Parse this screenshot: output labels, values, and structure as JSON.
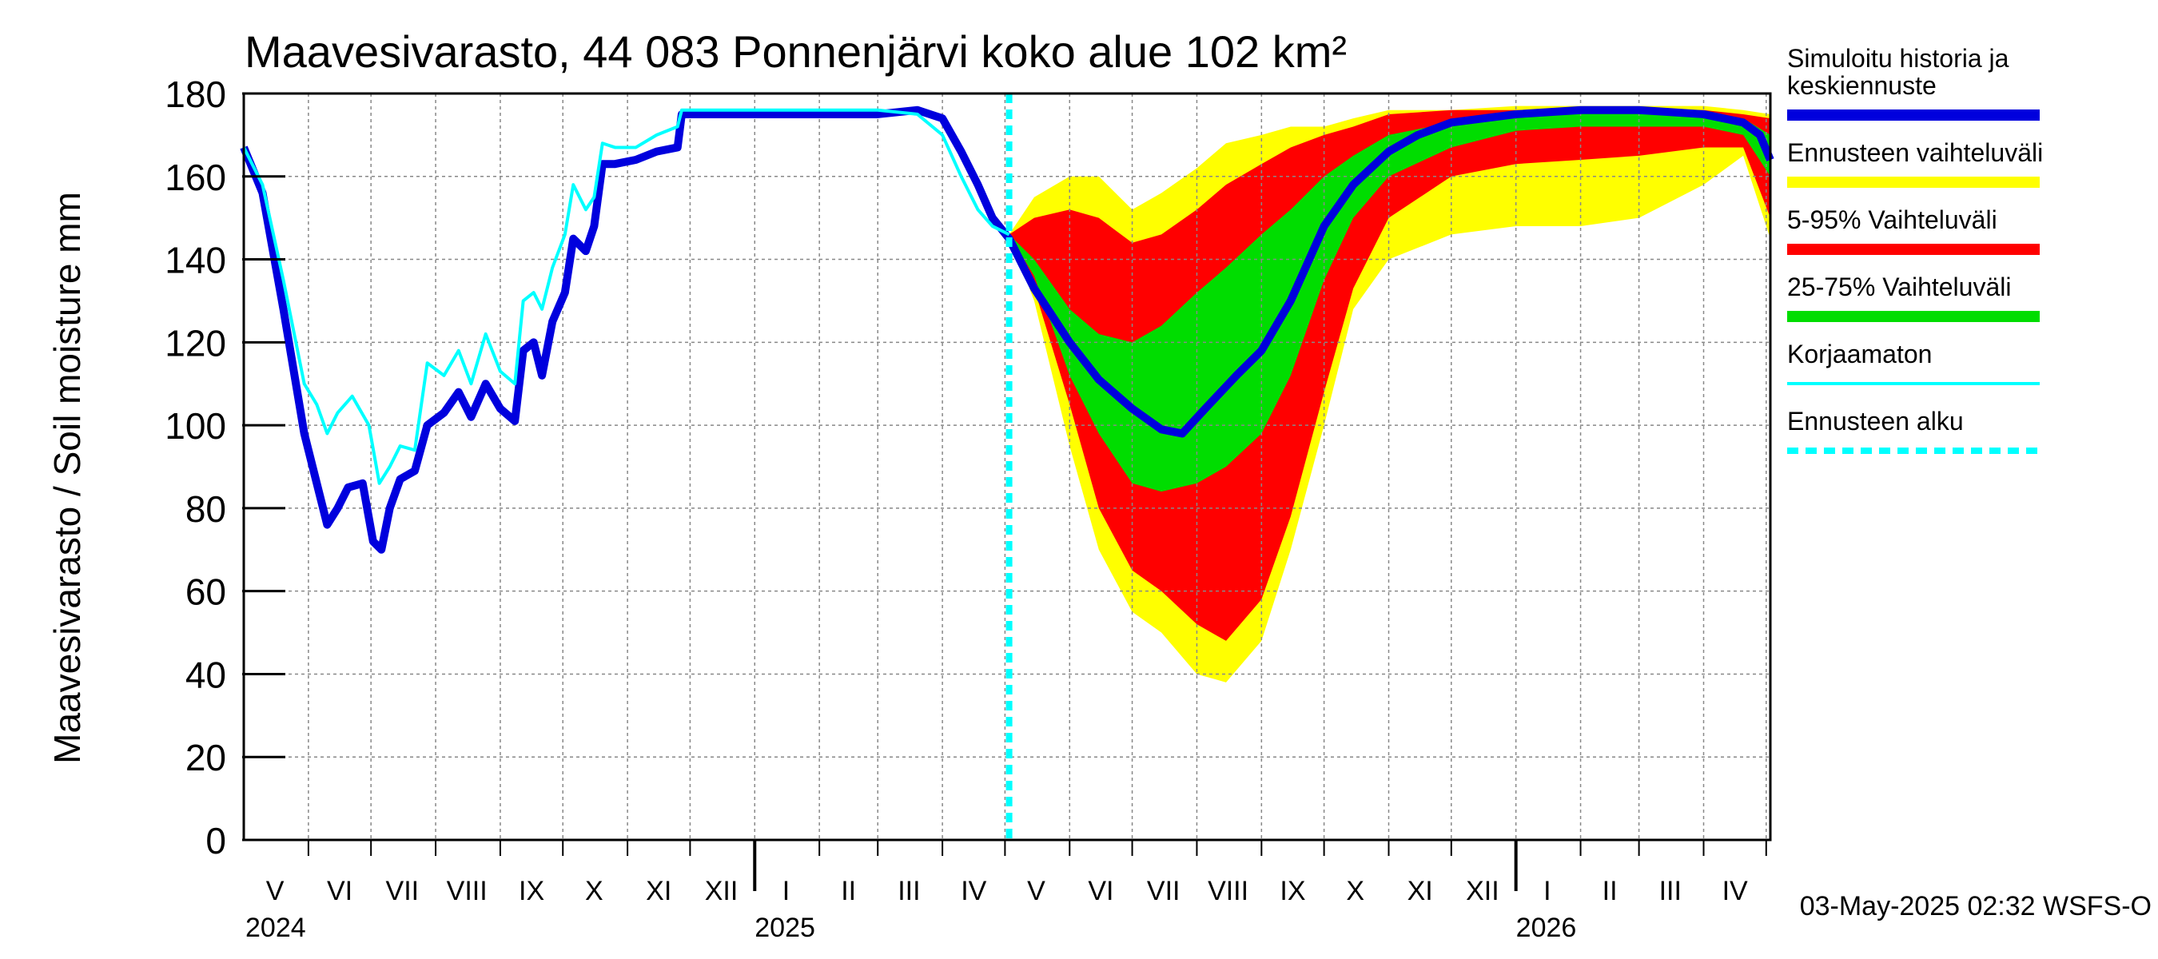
{
  "chart_data": {
    "type": "area",
    "title": "Maavesivarasto, 44 083 Ponnenjärvi koko alue 102 km²",
    "ylabel": "Maavesivarasto / Soil moisture   mm",
    "ylim": [
      0,
      180
    ],
    "yticks": [
      0,
      20,
      40,
      60,
      80,
      100,
      120,
      140,
      160,
      180
    ],
    "grid": true,
    "legend_position": "right",
    "x_range": [
      "2024-05-01",
      "2026-05-03"
    ],
    "forecast_start": "2025-05-03",
    "month_labels": [
      {
        "label": "V",
        "date": "2024-05-16"
      },
      {
        "label": "VI",
        "date": "2024-06-16"
      },
      {
        "label": "VII",
        "date": "2024-07-16"
      },
      {
        "label": "VIII",
        "date": "2024-08-16"
      },
      {
        "label": "IX",
        "date": "2024-09-16"
      },
      {
        "label": "X",
        "date": "2024-10-16"
      },
      {
        "label": "XI",
        "date": "2024-11-16"
      },
      {
        "label": "XII",
        "date": "2024-12-16"
      },
      {
        "label": "I",
        "date": "2025-01-16"
      },
      {
        "label": "II",
        "date": "2025-02-15"
      },
      {
        "label": "III",
        "date": "2025-03-16"
      },
      {
        "label": "IV",
        "date": "2025-04-16"
      },
      {
        "label": "V",
        "date": "2025-05-16"
      },
      {
        "label": "VI",
        "date": "2025-06-16"
      },
      {
        "label": "VII",
        "date": "2025-07-16"
      },
      {
        "label": "VIII",
        "date": "2025-08-16"
      },
      {
        "label": "IX",
        "date": "2025-09-16"
      },
      {
        "label": "X",
        "date": "2025-10-16"
      },
      {
        "label": "XI",
        "date": "2025-11-16"
      },
      {
        "label": "XII",
        "date": "2025-12-16"
      },
      {
        "label": "I",
        "date": "2026-01-16"
      },
      {
        "label": "II",
        "date": "2026-02-15"
      },
      {
        "label": "III",
        "date": "2026-03-16"
      },
      {
        "label": "IV",
        "date": "2026-04-16"
      }
    ],
    "year_labels": [
      {
        "label": "2024",
        "date": "2024-05-01"
      },
      {
        "label": "2025",
        "date": "2025-01-01"
      },
      {
        "label": "2026",
        "date": "2026-01-01"
      }
    ],
    "legend": [
      {
        "label": "Simuloitu historia ja keskiennuste",
        "color": "#0000dd",
        "style": "thick"
      },
      {
        "label": "Ennusteen vaihteluväli",
        "color": "#ffff00",
        "style": "thick"
      },
      {
        "label": "5-95% Vaihteluväli",
        "color": "#ff0000",
        "style": "thick"
      },
      {
        "label": "25-75% Vaihteluväli",
        "color": "#00dd00",
        "style": "thick"
      },
      {
        "label": "Korjaamaton",
        "color": "#00ffff",
        "style": "thin"
      },
      {
        "label": "Ennusteen alku",
        "color": "#00ffff",
        "style": "dashed"
      }
    ],
    "series": [
      {
        "name": "Simuloitu historia ja keskiennuste",
        "color": "#0000dd",
        "points": [
          [
            "2024-05-01",
            167
          ],
          [
            "2024-05-10",
            156
          ],
          [
            "2024-05-20",
            128
          ],
          [
            "2024-05-30",
            98
          ],
          [
            "2024-06-05",
            86
          ],
          [
            "2024-06-10",
            76
          ],
          [
            "2024-06-15",
            80
          ],
          [
            "2024-06-20",
            85
          ],
          [
            "2024-06-27",
            86
          ],
          [
            "2024-07-02",
            72
          ],
          [
            "2024-07-06",
            70
          ],
          [
            "2024-07-10",
            80
          ],
          [
            "2024-07-15",
            87
          ],
          [
            "2024-07-22",
            89
          ],
          [
            "2024-07-28",
            100
          ],
          [
            "2024-08-05",
            103
          ],
          [
            "2024-08-12",
            108
          ],
          [
            "2024-08-18",
            102
          ],
          [
            "2024-08-25",
            110
          ],
          [
            "2024-09-01",
            104
          ],
          [
            "2024-09-08",
            101
          ],
          [
            "2024-09-12",
            118
          ],
          [
            "2024-09-17",
            120
          ],
          [
            "2024-09-21",
            112
          ],
          [
            "2024-09-26",
            125
          ],
          [
            "2024-10-02",
            132
          ],
          [
            "2024-10-06",
            145
          ],
          [
            "2024-10-12",
            142
          ],
          [
            "2024-10-16",
            148
          ],
          [
            "2024-10-20",
            163
          ],
          [
            "2024-10-26",
            163
          ],
          [
            "2024-11-05",
            164
          ],
          [
            "2024-11-15",
            166
          ],
          [
            "2024-11-25",
            167
          ],
          [
            "2024-11-27",
            175
          ],
          [
            "2025-01-15",
            175
          ],
          [
            "2025-03-01",
            175
          ],
          [
            "2025-03-20",
            176
          ],
          [
            "2025-04-01",
            174
          ],
          [
            "2025-04-10",
            166
          ],
          [
            "2025-04-18",
            158
          ],
          [
            "2025-04-25",
            150
          ],
          [
            "2025-05-03",
            145
          ],
          [
            "2025-05-15",
            133
          ],
          [
            "2025-06-01",
            120
          ],
          [
            "2025-06-15",
            111
          ],
          [
            "2025-07-01",
            104
          ],
          [
            "2025-07-15",
            99
          ],
          [
            "2025-07-25",
            98
          ],
          [
            "2025-08-05",
            104
          ],
          [
            "2025-08-20",
            112
          ],
          [
            "2025-09-01",
            118
          ],
          [
            "2025-09-15",
            130
          ],
          [
            "2025-10-01",
            148
          ],
          [
            "2025-10-15",
            158
          ],
          [
            "2025-11-01",
            166
          ],
          [
            "2025-11-15",
            170
          ],
          [
            "2025-12-01",
            173
          ],
          [
            "2026-01-01",
            175
          ],
          [
            "2026-02-01",
            176
          ],
          [
            "2026-03-01",
            176
          ],
          [
            "2026-04-01",
            175
          ],
          [
            "2026-04-20",
            173
          ],
          [
            "2026-04-28",
            170
          ],
          [
            "2026-05-03",
            164
          ]
        ]
      },
      {
        "name": "Korjaamaton",
        "color": "#00ffff",
        "points": [
          [
            "2024-05-01",
            167
          ],
          [
            "2024-05-10",
            158
          ],
          [
            "2024-05-20",
            135
          ],
          [
            "2024-05-30",
            110
          ],
          [
            "2024-06-05",
            105
          ],
          [
            "2024-06-10",
            98
          ],
          [
            "2024-06-15",
            103
          ],
          [
            "2024-06-22",
            107
          ],
          [
            "2024-06-30",
            100
          ],
          [
            "2024-07-05",
            86
          ],
          [
            "2024-07-10",
            90
          ],
          [
            "2024-07-15",
            95
          ],
          [
            "2024-07-22",
            94
          ],
          [
            "2024-07-28",
            115
          ],
          [
            "2024-08-05",
            112
          ],
          [
            "2024-08-12",
            118
          ],
          [
            "2024-08-18",
            110
          ],
          [
            "2024-08-25",
            122
          ],
          [
            "2024-09-01",
            113
          ],
          [
            "2024-09-08",
            110
          ],
          [
            "2024-09-12",
            130
          ],
          [
            "2024-09-17",
            132
          ],
          [
            "2024-09-21",
            128
          ],
          [
            "2024-09-26",
            138
          ],
          [
            "2024-10-02",
            146
          ],
          [
            "2024-10-06",
            158
          ],
          [
            "2024-10-12",
            152
          ],
          [
            "2024-10-16",
            155
          ],
          [
            "2024-10-20",
            168
          ],
          [
            "2024-10-26",
            167
          ],
          [
            "2024-11-05",
            167
          ],
          [
            "2024-11-15",
            170
          ],
          [
            "2024-11-25",
            172
          ],
          [
            "2024-11-27",
            176
          ],
          [
            "2025-01-15",
            176
          ],
          [
            "2025-03-01",
            176
          ],
          [
            "2025-03-20",
            175
          ],
          [
            "2025-04-01",
            170
          ],
          [
            "2025-04-10",
            160
          ],
          [
            "2025-04-18",
            152
          ],
          [
            "2025-04-25",
            148
          ],
          [
            "2025-05-03",
            146
          ]
        ]
      }
    ],
    "bands": [
      {
        "name": "Ennusteen vaihteluväli",
        "color": "#ffff00",
        "points": [
          [
            "2025-05-03",
            146,
            146
          ],
          [
            "2025-05-15",
            155,
            130
          ],
          [
            "2025-06-01",
            160,
            95
          ],
          [
            "2025-06-15",
            160,
            70
          ],
          [
            "2025-07-01",
            152,
            55
          ],
          [
            "2025-07-15",
            156,
            50
          ],
          [
            "2025-08-01",
            162,
            40
          ],
          [
            "2025-08-15",
            168,
            38
          ],
          [
            "2025-09-01",
            170,
            48
          ],
          [
            "2025-09-15",
            172,
            70
          ],
          [
            "2025-10-01",
            172,
            100
          ],
          [
            "2025-10-15",
            174,
            128
          ],
          [
            "2025-11-01",
            176,
            140
          ],
          [
            "2025-12-01",
            176,
            146
          ],
          [
            "2026-01-01",
            177,
            148
          ],
          [
            "2026-02-01",
            177,
            148
          ],
          [
            "2026-03-01",
            177,
            150
          ],
          [
            "2026-04-01",
            177,
            158
          ],
          [
            "2026-04-20",
            176,
            165
          ],
          [
            "2026-05-03",
            175,
            145
          ]
        ]
      },
      {
        "name": "5-95% Vaihteluväli",
        "color": "#ff0000",
        "points": [
          [
            "2025-05-03",
            146,
            146
          ],
          [
            "2025-05-15",
            150,
            133
          ],
          [
            "2025-06-01",
            152,
            105
          ],
          [
            "2025-06-15",
            150,
            80
          ],
          [
            "2025-07-01",
            144,
            65
          ],
          [
            "2025-07-15",
            146,
            60
          ],
          [
            "2025-08-01",
            152,
            52
          ],
          [
            "2025-08-15",
            158,
            48
          ],
          [
            "2025-09-01",
            163,
            58
          ],
          [
            "2025-09-15",
            167,
            78
          ],
          [
            "2025-10-01",
            170,
            108
          ],
          [
            "2025-10-15",
            172,
            133
          ],
          [
            "2025-11-01",
            175,
            150
          ],
          [
            "2025-12-01",
            176,
            160
          ],
          [
            "2026-01-01",
            176,
            163
          ],
          [
            "2026-02-01",
            176,
            164
          ],
          [
            "2026-03-01",
            176,
            165
          ],
          [
            "2026-04-01",
            176,
            167
          ],
          [
            "2026-04-20",
            175,
            167
          ],
          [
            "2026-05-03",
            174,
            150
          ]
        ]
      },
      {
        "name": "25-75% Vaihteluväli",
        "color": "#00dd00",
        "points": [
          [
            "2025-05-03",
            146,
            146
          ],
          [
            "2025-05-15",
            140,
            136
          ],
          [
            "2025-06-01",
            128,
            112
          ],
          [
            "2025-06-15",
            122,
            98
          ],
          [
            "2025-07-01",
            120,
            86
          ],
          [
            "2025-07-15",
            124,
            84
          ],
          [
            "2025-08-01",
            132,
            86
          ],
          [
            "2025-08-15",
            138,
            90
          ],
          [
            "2025-09-01",
            146,
            98
          ],
          [
            "2025-09-15",
            152,
            112
          ],
          [
            "2025-10-01",
            160,
            135
          ],
          [
            "2025-10-15",
            165,
            150
          ],
          [
            "2025-11-01",
            170,
            160
          ],
          [
            "2025-12-01",
            173,
            167
          ],
          [
            "2026-01-01",
            175,
            171
          ],
          [
            "2026-02-01",
            176,
            172
          ],
          [
            "2026-03-01",
            176,
            172
          ],
          [
            "2026-04-01",
            175,
            172
          ],
          [
            "2026-04-20",
            174,
            170
          ],
          [
            "2026-05-03",
            170,
            160
          ]
        ]
      }
    ],
    "timestamp": "03-May-2025 02:32 WSFS-O"
  }
}
